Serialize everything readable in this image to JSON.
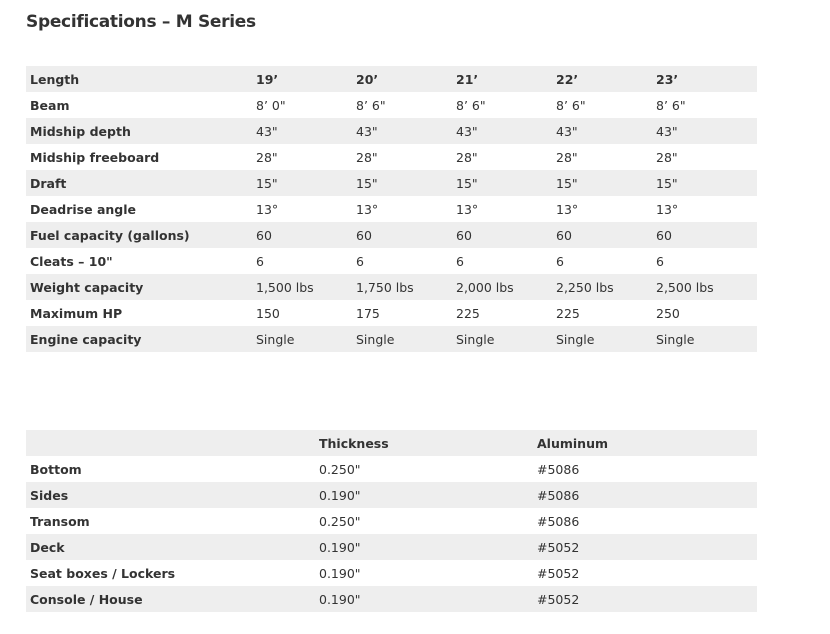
{
  "title": "Specifications – M Series",
  "specs": {
    "rows": [
      [
        "Length",
        "19’",
        "20’",
        "21’",
        "22’",
        "23’"
      ],
      [
        "Beam",
        "8’ 0\"",
        "8’ 6\"",
        "8’ 6\"",
        "8’ 6\"",
        "8’ 6\""
      ],
      [
        "Midship depth",
        "43\"",
        "43\"",
        "43\"",
        "43\"",
        "43\""
      ],
      [
        "Midship freeboard",
        "28\"",
        "28\"",
        "28\"",
        "28\"",
        "28\""
      ],
      [
        "Draft",
        "15\"",
        "15\"",
        "15\"",
        "15\"",
        "15\""
      ],
      [
        "Deadrise angle",
        "13°",
        "13°",
        "13°",
        "13°",
        "13°"
      ],
      [
        "Fuel capacity (gallons)",
        "60",
        "60",
        "60",
        "60",
        "60"
      ],
      [
        "Cleats – 10\"",
        "6",
        "6",
        "6",
        "6",
        "6"
      ],
      [
        "Weight capacity",
        "1,500 lbs",
        "1,750 lbs",
        "2,000 lbs",
        "2,250 lbs",
        "2,500 lbs"
      ],
      [
        "Maximum HP",
        "150",
        "175",
        "225",
        "225",
        "250"
      ],
      [
        "Engine capacity",
        "Single",
        "Single",
        "Single",
        "Single",
        "Single"
      ]
    ]
  },
  "materials": {
    "rows": [
      [
        "",
        "Thickness",
        "Aluminum"
      ],
      [
        "Bottom",
        "0.250\"",
        "#5086"
      ],
      [
        "Sides",
        "0.190\"",
        "#5086"
      ],
      [
        "Transom",
        "0.250\"",
        "#5086"
      ],
      [
        "Deck",
        "0.190\"",
        "#5052"
      ],
      [
        "Seat boxes / Lockers",
        "0.190\"",
        "#5052"
      ],
      [
        "Console / House",
        "0.190\"",
        "#5052"
      ]
    ]
  }
}
